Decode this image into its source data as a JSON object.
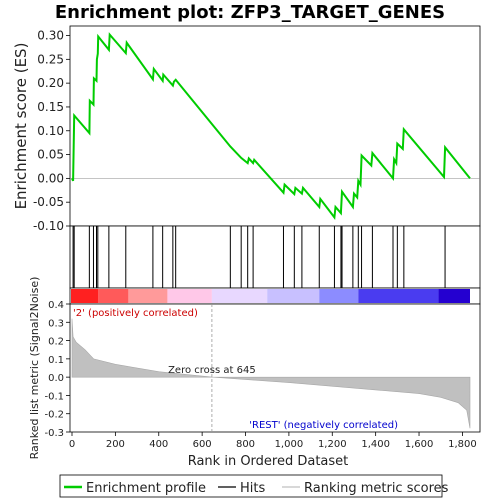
{
  "chart_data": {
    "type": "line",
    "title": "Enrichment plot: ZFP3_TARGET_GENES",
    "es_panel": {
      "ylabel": "Enrichment score (ES)",
      "ylim": [
        -0.1,
        0.32
      ],
      "yticks": [
        -0.1,
        -0.05,
        0.0,
        0.05,
        0.1,
        0.15,
        0.2,
        0.25,
        0.3
      ],
      "ytick_labels": [
        "-0.10",
        "-0.05",
        "0.00",
        "0.05",
        "0.10",
        "0.15",
        "0.20",
        "0.25",
        "0.30"
      ],
      "line_color": "#00cc00",
      "points": [
        [
          0,
          0.0
        ],
        [
          5,
          -0.005
        ],
        [
          10,
          0.132
        ],
        [
          80,
          0.095
        ],
        [
          82,
          0.163
        ],
        [
          99,
          0.155
        ],
        [
          101,
          0.21
        ],
        [
          113,
          0.205
        ],
        [
          115,
          0.25
        ],
        [
          119,
          0.262
        ],
        [
          121,
          0.298
        ],
        [
          170,
          0.27
        ],
        [
          174,
          0.302
        ],
        [
          248,
          0.263
        ],
        [
          252,
          0.285
        ],
        [
          373,
          0.208
        ],
        [
          377,
          0.23
        ],
        [
          418,
          0.205
        ],
        [
          421,
          0.218
        ],
        [
          465,
          0.195
        ],
        [
          470,
          0.203
        ],
        [
          478,
          0.207
        ],
        [
          730,
          0.067
        ],
        [
          780,
          0.043
        ],
        [
          810,
          0.032
        ],
        [
          815,
          0.042
        ],
        [
          835,
          0.032
        ],
        [
          840,
          0.039
        ],
        [
          975,
          -0.03
        ],
        [
          980,
          -0.013
        ],
        [
          1025,
          -0.033
        ],
        [
          1030,
          -0.02
        ],
        [
          1060,
          -0.032
        ],
        [
          1065,
          -0.02
        ],
        [
          1140,
          -0.06
        ],
        [
          1145,
          -0.043
        ],
        [
          1210,
          -0.082
        ],
        [
          1215,
          -0.06
        ],
        [
          1240,
          -0.073
        ],
        [
          1245,
          -0.028
        ],
        [
          1295,
          -0.06
        ],
        [
          1300,
          -0.032
        ],
        [
          1315,
          -0.04
        ],
        [
          1320,
          -0.005
        ],
        [
          1330,
          -0.013
        ],
        [
          1335,
          0.048
        ],
        [
          1380,
          0.027
        ],
        [
          1385,
          0.053
        ],
        [
          1480,
          0.0
        ],
        [
          1485,
          0.04
        ],
        [
          1495,
          0.032
        ],
        [
          1500,
          0.073
        ],
        [
          1525,
          0.062
        ],
        [
          1530,
          0.103
        ],
        [
          1715,
          0.003
        ],
        [
          1720,
          0.065
        ],
        [
          1835,
          0.0
        ]
      ]
    },
    "hits": [
      5,
      10,
      80,
      99,
      113,
      119,
      170,
      248,
      373,
      418,
      465,
      478,
      730,
      780,
      810,
      835,
      975,
      1025,
      1060,
      1140,
      1210,
      1240,
      1245,
      1295,
      1320,
      1335,
      1385,
      1480,
      1500,
      1530,
      1720
    ],
    "rank_panel": {
      "ylabel": "Ranked list metric (Signal2Noise)",
      "ylim": [
        -0.3,
        0.4
      ],
      "yticks": [
        -0.3,
        -0.2,
        -0.1,
        0.0,
        0.1,
        0.2,
        0.3,
        0.4
      ],
      "ytick_labels": [
        "-0.3",
        "-0.2",
        "-0.1",
        "0.0",
        "0.1",
        "0.2",
        "0.3",
        "0.4"
      ],
      "profile_ranks": [
        0,
        5,
        20,
        60,
        100,
        200,
        400,
        645,
        1000,
        1400,
        1600,
        1700,
        1780,
        1820,
        1835
      ],
      "profile_values": [
        0.32,
        0.22,
        0.19,
        0.15,
        0.1,
        0.07,
        0.03,
        0.0,
        -0.03,
        -0.07,
        -0.09,
        -0.11,
        -0.14,
        -0.18,
        -0.28
      ],
      "fill_color": "#c0c0c0",
      "zero_cross_rank": 645,
      "zero_cross_label": "Zero cross at 645",
      "pos_label": "'2' (positively correlated)",
      "neg_label": "'REST' (negatively correlated)",
      "pos_label_color": "#cc0000",
      "neg_label_color": "#0000cc"
    },
    "xlabel": "Rank in Ordered Dataset",
    "xlim": [
      0,
      1835
    ],
    "xticks": [
      0,
      200,
      400,
      600,
      800,
      1000,
      1200,
      1400,
      1600,
      1800
    ],
    "xtick_labels": [
      "0",
      "200",
      "400",
      "600",
      "800",
      "1,000",
      "1,200",
      "1,400",
      "1,600",
      "1,800"
    ],
    "heatbar": {
      "ranks": [
        0,
        120,
        260,
        440,
        645,
        900,
        1140,
        1320,
        1690,
        1835
      ],
      "colors": [
        "#ff2020",
        "#ff5a5a",
        "#ff9a9a",
        "#ffc8e8",
        "#e8d8ff",
        "#c8c0ff",
        "#8c8cff",
        "#4a3cf0",
        "#2400d0"
      ]
    },
    "legend": {
      "location": "bottom",
      "entries": [
        {
          "label": "Enrichment profile",
          "color": "#00cc00",
          "style": "thick-line"
        },
        {
          "label": "Hits",
          "color": "#000000",
          "style": "line"
        },
        {
          "label": "Ranking metric scores",
          "color": "#c0c0c0",
          "style": "line"
        }
      ]
    }
  }
}
